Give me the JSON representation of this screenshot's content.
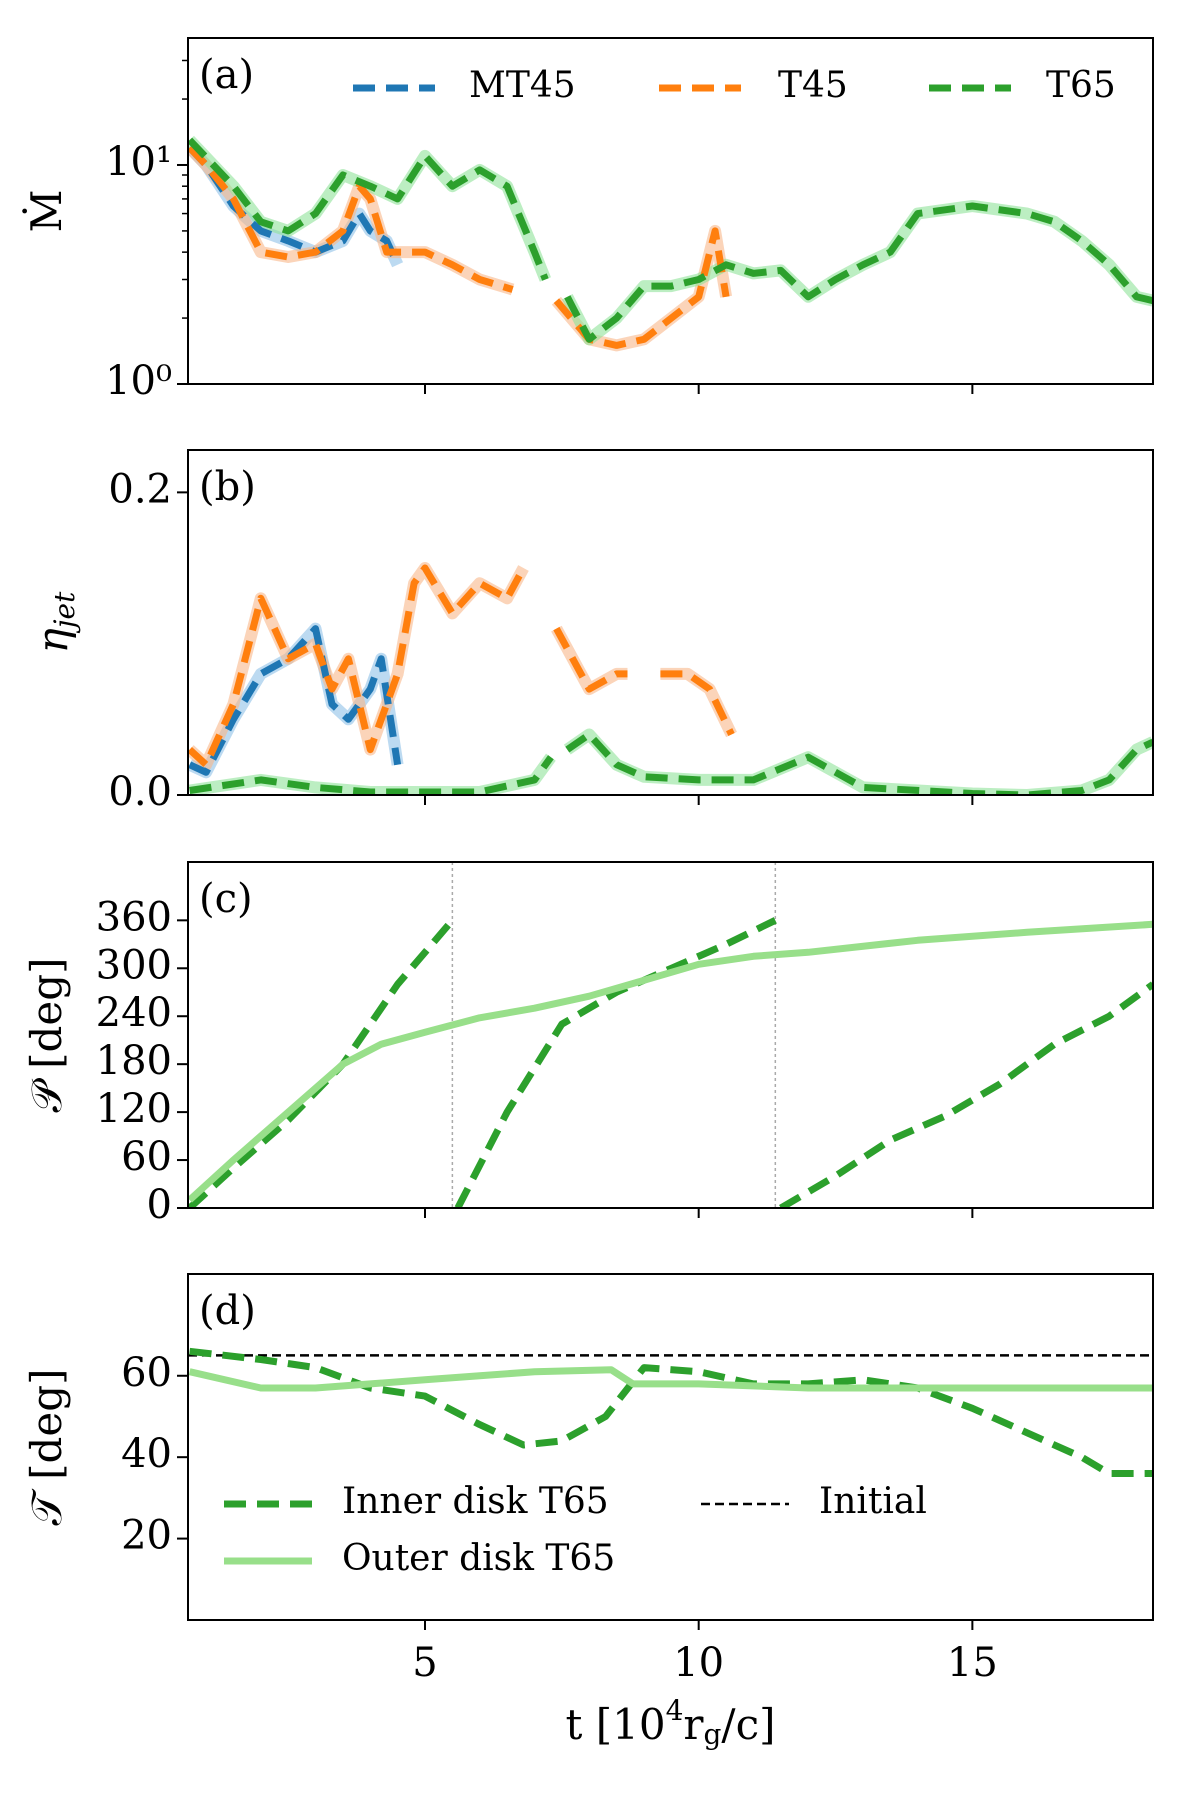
{
  "chart_data": [
    {
      "type": "line",
      "panel_label": "(a)",
      "ylabel": "Ṁ",
      "log_y": true,
      "band": true,
      "xlim": [
        0.67,
        18.3
      ],
      "xticks": [
        5,
        10,
        15
      ],
      "ylim": [
        1,
        38
      ],
      "yticks": [
        {
          "value": 1,
          "label": "10⁰"
        },
        {
          "value": 10,
          "label": "10¹"
        }
      ],
      "yminorticks": [
        2,
        3,
        4,
        5,
        6,
        7,
        8,
        9,
        20,
        30
      ],
      "legend": "top",
      "series": [
        {
          "name": "MT45",
          "color": "#1f77b4",
          "band_color": "#8fc1e8",
          "style": "dashed",
          "x": [
            0.7,
            1,
            1.5,
            2,
            2.5,
            3,
            3.5,
            3.8,
            4,
            4.3,
            4.5
          ],
          "values": [
            12,
            10,
            6.5,
            5,
            4.5,
            4,
            4.5,
            6,
            5,
            4.5,
            3.5
          ]
        },
        {
          "name": "T45",
          "color": "#ff7f0e",
          "band_color": "#f8b88a",
          "style": "dashed",
          "x": [
            0.7,
            1,
            1.5,
            2,
            2.5,
            3,
            3.5,
            3.8,
            4,
            4.3,
            5,
            5.5,
            6,
            6.6,
            7,
            7.4,
            8,
            8.5,
            9,
            9.5,
            10,
            10.3,
            10.5
          ],
          "values": [
            12,
            10,
            7,
            4,
            3.8,
            4,
            5,
            8,
            7,
            4,
            4,
            3.5,
            3,
            2.7,
            null,
            2.4,
            1.6,
            1.5,
            1.6,
            2,
            2.5,
            5,
            2.5
          ]
        },
        {
          "name": "T65",
          "color": "#2ca02c",
          "band_color": "#8fe39a",
          "style": "dashed",
          "x": [
            0.7,
            1.5,
            2,
            2.5,
            3,
            3.5,
            4,
            4.5,
            5,
            5.5,
            6,
            6.5,
            7,
            7.2,
            7.5,
            7.6,
            8,
            8.5,
            9,
            9.5,
            10,
            10.5,
            11,
            11.5,
            12,
            12.5,
            13,
            13.5,
            14,
            15,
            16,
            16.5,
            17,
            17.5,
            18,
            18.3
          ],
          "values": [
            13,
            8,
            5.5,
            5,
            6,
            9,
            8,
            7,
            11,
            8,
            9.5,
            8,
            4,
            3,
            null,
            2.5,
            1.6,
            2,
            2.8,
            2.8,
            3,
            3.5,
            3.2,
            3.3,
            2.5,
            3,
            3.5,
            4,
            6,
            6.5,
            6,
            5.5,
            4.5,
            3.5,
            2.5,
            2.4
          ]
        }
      ]
    },
    {
      "type": "line",
      "panel_label": "(b)",
      "ylabel": {
        "main": "η",
        "sub": "jet"
      },
      "band": true,
      "xlim": [
        0.67,
        18.3
      ],
      "xticks": [
        5,
        10,
        15
      ],
      "ylim": [
        0,
        0.228
      ],
      "yticks": [
        {
          "value": 0,
          "label": "0.0"
        },
        0.2
      ],
      "series": [
        {
          "name": "MT45",
          "color": "#1f77b4",
          "band_color": "#8fc1e8",
          "style": "dashed",
          "x": [
            0.7,
            1,
            1.5,
            2,
            2.5,
            3,
            3.3,
            3.6,
            4,
            4.2,
            4.5
          ],
          "values": [
            0.02,
            0.015,
            0.05,
            0.08,
            0.09,
            0.11,
            0.06,
            0.05,
            0.07,
            0.09,
            0.02
          ]
        },
        {
          "name": "T45",
          "color": "#ff7f0e",
          "band_color": "#f8b88a",
          "style": "dashed",
          "x": [
            0.7,
            1,
            1.5,
            2,
            2.5,
            3,
            3.3,
            3.6,
            4,
            4.5,
            4.8,
            5,
            5.5,
            6,
            6.5,
            6.8,
            7,
            7.4,
            8,
            8.5,
            8.7,
            9,
            9.3,
            9.8,
            10.2,
            10.6
          ],
          "values": [
            0.03,
            0.02,
            0.06,
            0.13,
            0.09,
            0.1,
            0.07,
            0.09,
            0.03,
            0.08,
            0.14,
            0.15,
            0.12,
            0.14,
            0.13,
            0.15,
            null,
            0.11,
            0.07,
            0.08,
            0.08,
            null,
            0.08,
            0.08,
            0.07,
            0.04
          ]
        },
        {
          "name": "T65",
          "color": "#2ca02c",
          "band_color": "#8fe39a",
          "style": "dashed",
          "x": [
            0.7,
            2,
            3,
            4,
            6,
            7,
            7.3,
            7.45,
            7.6,
            8,
            8.5,
            9,
            10,
            11,
            12,
            13,
            15,
            16,
            17,
            17.5,
            18,
            18.3
          ],
          "values": [
            0.003,
            0.01,
            0.005,
            0.002,
            0.002,
            0.01,
            0.025,
            null,
            0.03,
            0.04,
            0.02,
            0.012,
            0.01,
            0.01,
            0.025,
            0.005,
            0.001,
            0,
            0.003,
            0.01,
            0.03,
            0.035
          ]
        }
      ]
    },
    {
      "type": "line",
      "panel_label": "(c)",
      "ylabel": "𝒫 [deg]",
      "wrap_lines": true,
      "xlim": [
        0.67,
        18.3
      ],
      "xticks": [
        5,
        10,
        15
      ],
      "ylim": [
        0,
        433
      ],
      "yticks": [
        0,
        60,
        120,
        180,
        240,
        300,
        360
      ],
      "series": [
        {
          "name": "Inner disk T65",
          "color": "#2ca02c",
          "style": "dashed",
          "x": [
            0.7,
            1.5,
            2.5,
            3.5,
            4.5,
            5.5,
            5.55,
            5.6,
            6.5,
            7.5,
            8.5,
            9.5,
            10.5,
            11.4,
            11.45,
            11.5,
            12.5,
            13.5,
            14.5,
            15.5,
            16.5,
            17.5,
            18.3
          ],
          "values": [
            0,
            50,
            110,
            180,
            280,
            360,
            null,
            0,
            120,
            230,
            270,
            300,
            330,
            360,
            null,
            0,
            40,
            85,
            115,
            155,
            205,
            240,
            280
          ]
        },
        {
          "name": "Outer disk T65",
          "color": "#98df8a",
          "style": "solid",
          "x": [
            0.7,
            1.5,
            2.5,
            3.5,
            4.2,
            5,
            6,
            7,
            8,
            9,
            10,
            11,
            12,
            14,
            16,
            18.3
          ],
          "values": [
            10,
            60,
            120,
            180,
            205,
            220,
            238,
            250,
            265,
            285,
            305,
            315,
            320,
            335,
            345,
            355
          ]
        }
      ]
    },
    {
      "type": "line",
      "panel_label": "(d)",
      "ylabel": "𝒯 [deg]",
      "xlabel": [
        "t [10",
        "4",
        "r",
        "g",
        "/c]"
      ],
      "xlim": [
        0.67,
        18.3
      ],
      "xticks": [
        5,
        10,
        15
      ],
      "ylim": [
        0,
        85
      ],
      "yticks": [
        20,
        40,
        60
      ],
      "legend": "lower left",
      "reference_line": {
        "name": "Initial",
        "value": 65,
        "color": "#000000"
      },
      "series": [
        {
          "name": "Inner disk T65",
          "color": "#2ca02c",
          "style": "dashed",
          "x": [
            0.7,
            2,
            3,
            4,
            5,
            6,
            6.8,
            7.5,
            8.3,
            9,
            10,
            11,
            12,
            13,
            14,
            15,
            16,
            17,
            17.5,
            18.3
          ],
          "values": [
            66,
            64,
            62,
            57,
            55,
            48,
            43,
            44,
            50,
            62,
            61,
            58,
            58,
            59,
            57,
            52,
            46,
            40,
            36,
            36
          ]
        },
        {
          "name": "Outer disk T65",
          "color": "#98df8a",
          "style": "solid",
          "x": [
            0.7,
            2,
            3,
            4,
            5,
            6,
            7,
            8.4,
            8.8,
            10,
            12,
            14,
            16,
            18.3
          ],
          "values": [
            61,
            57,
            57,
            58,
            59,
            60,
            61,
            61.5,
            58,
            58,
            57,
            57,
            57,
            57
          ]
        }
      ]
    }
  ]
}
